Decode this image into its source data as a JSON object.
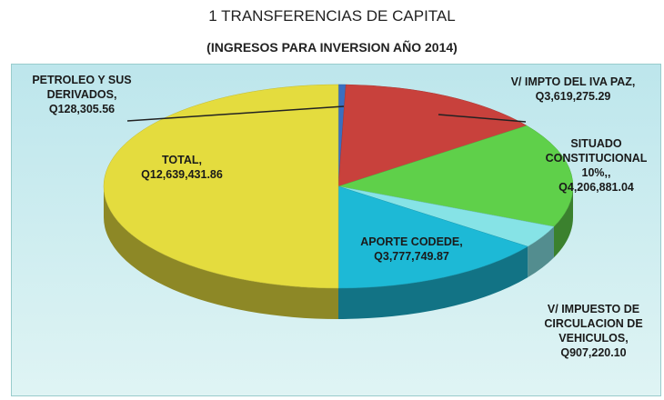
{
  "chart_data": {
    "type": "pie",
    "title": "1 TRANSFERENCIAS DE CAPITAL",
    "subtitle": "(INGRESOS PARA INVERSION AÑO 2014)",
    "categories": [
      "PETROLEO Y SUS DERIVADOS,",
      "V/ IMPTO DEL IVA PAZ,",
      "SITUADO CONSTITUCIONAL 10%,,",
      "V/ IMPUESTO DE CIRCULACION DE VEHICULOS,",
      "APORTE CODEDE,",
      "TOTAL,"
    ],
    "values": [
      128305.56,
      3619275.29,
      4206881.04,
      907220.1,
      3777749.87,
      12639431.86
    ],
    "value_labels": [
      "Q128,305.56",
      "Q3,619,275.29",
      "Q4,206,881.04",
      "Q907,220.10",
      "Q3,777,749.87",
      "Q12,639,431.86"
    ],
    "colors": [
      "#3a6fc0",
      "#c8413c",
      "#5fd04a",
      "#86e3e6",
      "#1db9d6",
      "#e4dc3e"
    ]
  }
}
